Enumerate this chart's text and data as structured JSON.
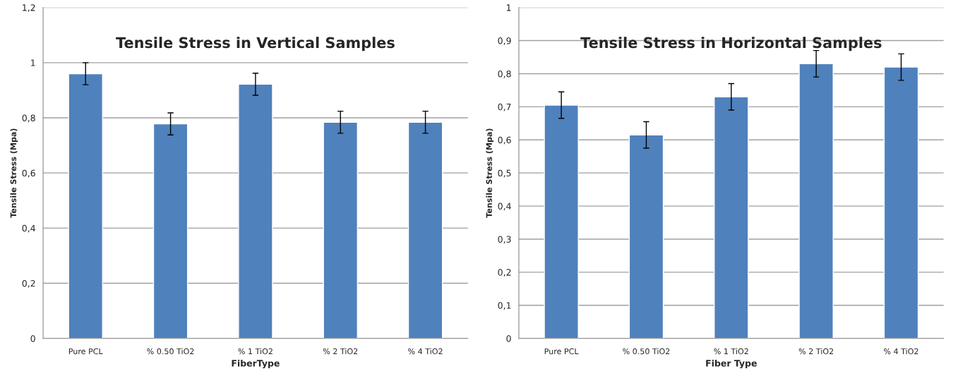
{
  "chart_data": [
    {
      "type": "bar",
      "title": "Tensile Stress in Vertical Samples",
      "xlabel": "FiberType",
      "ylabel": "Tensile Stress (Mpa)",
      "categories": [
        "Pure PCL",
        "% 0.50 TiO2",
        "% 1 TiO2",
        "% 2 TiO2",
        "% 4 TiO2"
      ],
      "values": [
        0.96,
        0.778,
        0.922,
        0.784,
        0.784
      ],
      "errors": [
        0.04,
        0.04,
        0.04,
        0.04,
        0.04
      ],
      "color": "#4f81bd",
      "ylim": [
        0,
        1.2
      ],
      "yticks": [
        {
          "value": 0,
          "label": "0"
        },
        {
          "value": 0.2,
          "label": "0,2"
        },
        {
          "value": 0.4,
          "label": "0,4"
        },
        {
          "value": 0.6,
          "label": "0,6"
        },
        {
          "value": 0.8,
          "label": "0,8"
        },
        {
          "value": 1,
          "label": "1"
        },
        {
          "value": 1.2,
          "label": "1,2"
        }
      ],
      "grid": "y"
    },
    {
      "type": "bar",
      "title": "Tensile Stress in Horizontal Samples",
      "xlabel": "Fiber Type",
      "ylabel": "Tensile Stress (Mpa)",
      "categories": [
        "Pure PCL",
        "% 0.50 TiO2",
        "% 1 TiO2",
        "% 2 TiO2",
        "% 4 TiO2"
      ],
      "values": [
        0.705,
        0.615,
        0.73,
        0.83,
        0.82
      ],
      "errors": [
        0.04,
        0.04,
        0.04,
        0.04,
        0.04
      ],
      "color": "#4f81bd",
      "ylim": [
        0,
        1
      ],
      "yticks": [
        {
          "value": 0,
          "label": "0"
        },
        {
          "value": 0.1,
          "label": "0,1"
        },
        {
          "value": 0.2,
          "label": "0,2"
        },
        {
          "value": 0.3,
          "label": "0,3"
        },
        {
          "value": 0.4,
          "label": "0,4"
        },
        {
          "value": 0.5,
          "label": "0,5"
        },
        {
          "value": 0.6,
          "label": "0,6"
        },
        {
          "value": 0.7,
          "label": "0,7"
        },
        {
          "value": 0.8,
          "label": "0,8"
        },
        {
          "value": 0.9,
          "label": "0,9"
        },
        {
          "value": 1,
          "label": "1"
        }
      ],
      "grid": "y"
    }
  ]
}
